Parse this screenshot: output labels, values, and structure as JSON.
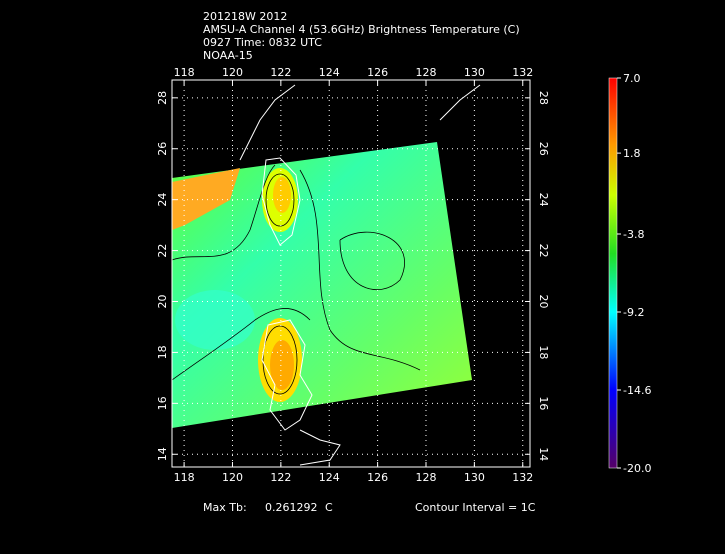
{
  "header": {
    "lines": [
      "201218W 2012",
      "AMSU-A Channel 4 (53.6GHz) Brightness Temperature (C)",
      "0927 Time: 0832 UTC",
      "NOAA-15"
    ]
  },
  "map": {
    "xlim": [
      117.5,
      132.3
    ],
    "ylim": [
      13.5,
      28.7
    ],
    "lon_ticks": [
      118,
      120,
      122,
      124,
      126,
      128,
      130,
      132
    ],
    "lat_ticks": [
      14,
      16,
      18,
      20,
      22,
      24,
      26,
      28
    ]
  },
  "colorbar": {
    "clim": [
      -20,
      7
    ],
    "ticks": [
      {
        "value": 7,
        "label": "7.0"
      },
      1.8,
      -3.8,
      -9.2,
      -14.6,
      {
        "value": -20,
        "label": "-20.0"
      }
    ]
  },
  "footer": {
    "max_tb_label": "Max Tb:",
    "max_tb_value": "0.261292",
    "max_tb_unit": "C",
    "contour_interval": "Contour Interval = 1C"
  }
}
